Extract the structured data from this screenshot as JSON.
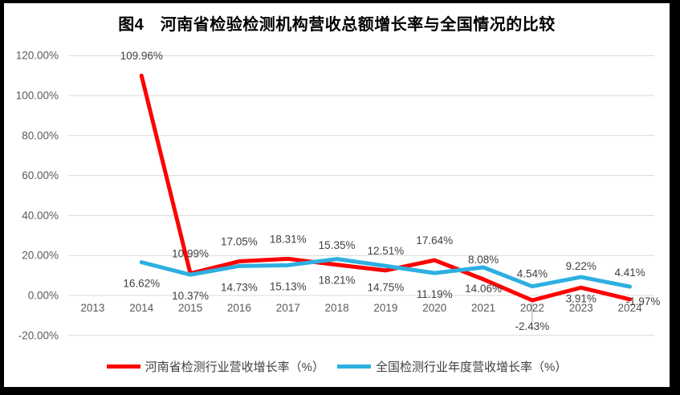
{
  "title": "图4　河南省检验检测机构营收总额增长率与全国情况的比较",
  "colors": {
    "frame": "#000000",
    "background": "#FFFFFF",
    "grid": "#D9D9D9",
    "axis_text": "#595959",
    "data_label_text": "#404040",
    "leader_line": "#A6A6A6",
    "henan_series": "#FE0000",
    "national_series": "#2EAFE1"
  },
  "chart_data": {
    "type": "line",
    "title": "图4　河南省检验检测机构营收总额增长率与全国情况的比较",
    "categories": [
      "2013",
      "2014",
      "2015",
      "2016",
      "2017",
      "2018",
      "2019",
      "2020",
      "2021",
      "2022",
      "2023",
      "2024"
    ],
    "series": [
      {
        "name": "河南省检测行业营收增长率（%）",
        "color": "#FE0000",
        "values": [
          null,
          109.96,
          10.99,
          17.05,
          18.31,
          15.35,
          12.51,
          17.64,
          8.08,
          -2.43,
          3.91,
          -1.97
        ],
        "labels": [
          null,
          "109.96%",
          "10.99%",
          "17.05%",
          "18.31%",
          "15.35%",
          "12.51%",
          "17.64%",
          "8.08%",
          "-2.43%",
          "3.91%",
          "-1.97%"
        ]
      },
      {
        "name": "全国检测行业年度营收增长率（%）",
        "color": "#2EAFE1",
        "values": [
          null,
          16.62,
          10.37,
          14.73,
          15.13,
          18.21,
          14.75,
          11.19,
          14.06,
          4.54,
          9.22,
          4.41
        ],
        "labels": [
          null,
          "16.62%",
          "10.37%",
          "14.73%",
          "15.13%",
          "18.21%",
          "14.75%",
          "11.19%",
          "14.06%",
          "4.54%",
          "9.22%",
          "4.41%"
        ]
      }
    ],
    "y_axis": {
      "ticks": [
        "120.00%",
        "100.00%",
        "80.00%",
        "60.00%",
        "40.00%",
        "20.00%",
        "0.00%",
        "-20.00%"
      ],
      "tick_values": [
        120,
        100,
        80,
        60,
        40,
        20,
        0,
        -20
      ],
      "min": -20,
      "max": 120
    },
    "grid": true,
    "legend_position": "bottom"
  },
  "legend": {
    "henan_label": "河南省检测行业营收增长率（%）",
    "national_label": "全国检测行业年度营收增长率（%）"
  }
}
